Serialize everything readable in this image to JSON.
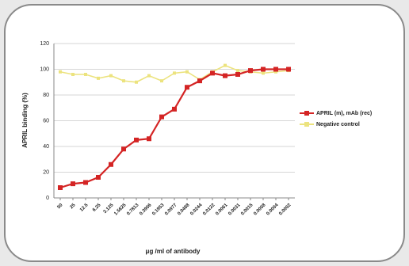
{
  "chart_data": {
    "type": "line",
    "x_label": "μg /ml of antibody",
    "y_label": "APRIL binding (%)",
    "categories": [
      "50",
      "25",
      "12.5",
      "6.25",
      "3.125",
      "1.5625",
      "0.7813",
      "0.3906",
      "0.1953",
      "0.0977",
      "0.0488",
      "0.0244",
      "0.0122",
      "0.0061",
      "0.0031",
      "0.0015",
      "0.0008",
      "0.0004",
      "0.0002"
    ],
    "series": [
      {
        "name": "APRIL (m), mAb (rec)",
        "color": "#d42424",
        "values": [
          8,
          11,
          12,
          16,
          26,
          38,
          45,
          46,
          63,
          69,
          86,
          91,
          97,
          95,
          96,
          99,
          100,
          100,
          100
        ]
      },
      {
        "name": "Negative control",
        "color": "#ece37e",
        "values": [
          98,
          96,
          96,
          93,
          95,
          91,
          90,
          95,
          91,
          97,
          98,
          92,
          98,
          103,
          99,
          98,
          97,
          98,
          99
        ]
      }
    ],
    "ylim": [
      0,
      120
    ],
    "yticks": [
      0,
      20,
      40,
      60,
      80,
      100,
      120
    ],
    "grid": true,
    "legend": "right"
  }
}
